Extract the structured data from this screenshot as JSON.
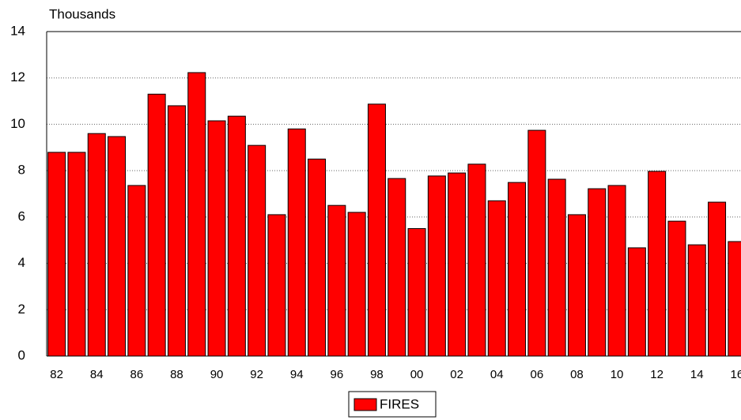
{
  "chart_data": {
    "type": "bar",
    "y_label": "Thousands",
    "categories": [
      "82",
      null,
      "84",
      null,
      "86",
      null,
      "88",
      null,
      "90",
      null,
      "92",
      null,
      "94",
      null,
      "96",
      null,
      "98",
      null,
      "00",
      null,
      "02",
      null,
      "04",
      null,
      "06",
      null,
      "08",
      null,
      "10",
      null,
      "12",
      null,
      "14",
      null,
      "16"
    ],
    "series": [
      {
        "name": "FIRES",
        "color": "#ff0000",
        "values": [
          8.79,
          8.79,
          9.6,
          9.47,
          7.36,
          11.3,
          10.8,
          12.23,
          10.15,
          10.35,
          9.09,
          6.1,
          9.8,
          8.5,
          6.5,
          6.2,
          10.87,
          7.66,
          5.5,
          7.77,
          7.9,
          8.28,
          6.7,
          7.49,
          9.74,
          7.63,
          6.1,
          7.22,
          7.36,
          4.67,
          7.97,
          5.82,
          4.8,
          6.64,
          4.94
        ]
      }
    ],
    "ylim": [
      0,
      14
    ],
    "yticks": [
      0,
      2,
      4,
      6,
      8,
      10,
      12,
      14
    ],
    "grid": true
  }
}
